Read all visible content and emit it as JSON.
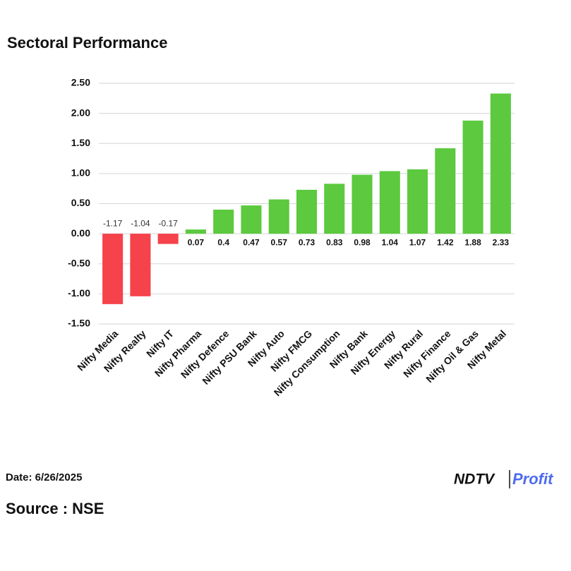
{
  "chart_data": {
    "type": "bar",
    "title": "Sectoral Performance",
    "categories": [
      "Nifty Media",
      "Nifty Realty",
      "Nifty IT",
      "Nifty Pharma",
      "Nifty Defence",
      "Nifty PSU Bank",
      "Nifty Auto",
      "Nifty FMCG",
      "Nifty Consumption",
      "Nifty Bank",
      "Nifty Energy",
      "Nifty Rural",
      "Nifty Finance",
      "Nifty Oil & Gas",
      "Nifty Metal"
    ],
    "values": [
      -1.17,
      -1.04,
      -0.17,
      0.07,
      0.4,
      0.47,
      0.57,
      0.73,
      0.83,
      0.98,
      1.04,
      1.07,
      1.42,
      1.88,
      2.33
    ],
    "colors": {
      "positive": "#5cc93f",
      "negative": "#f5424b"
    },
    "ylim": [
      -1.5,
      2.5
    ],
    "yticks": [
      {
        "value": -1.5,
        "label": "-1.50"
      },
      {
        "value": -1,
        "label": "-1.00"
      },
      {
        "value": -0.5,
        "label": "-0.50"
      },
      {
        "value": 0,
        "label": "0.00"
      },
      {
        "value": 0.5,
        "label": "0.50"
      },
      {
        "value": 1,
        "label": "1.00"
      },
      {
        "value": 1.5,
        "label": "1.50"
      },
      {
        "value": 2,
        "label": "2.00"
      },
      {
        "value": 2.5,
        "label": "2.50"
      }
    ],
    "grid": true
  },
  "footer": {
    "date": "Date: 6/26/2025",
    "source": "Source : NSE",
    "logo": {
      "brand": "NDTV",
      "product": "Profit"
    }
  }
}
